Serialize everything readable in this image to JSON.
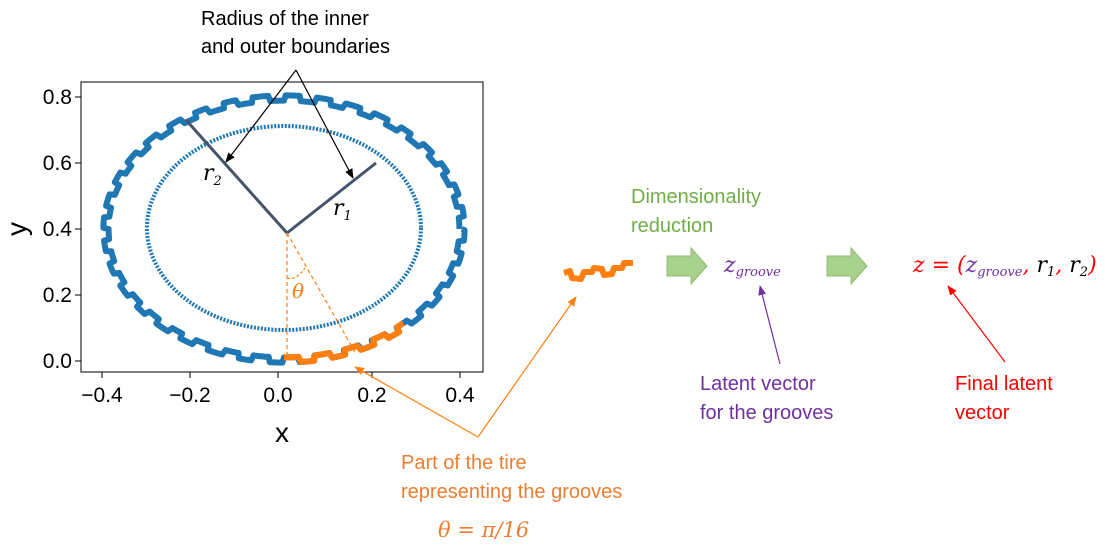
{
  "plot": {
    "x_ticks": [
      "−0.4",
      "−0.2",
      "0.0",
      "0.2",
      "0.4"
    ],
    "y_ticks": [
      "0.8",
      "0.6",
      "0.4",
      "0.2",
      "0.0"
    ],
    "x_label": "x",
    "y_label": "y"
  },
  "annotations": {
    "radius_note_line1": "Radius of the inner",
    "radius_note_line2": "and outer boundaries",
    "r2": "r",
    "r2_sub": "2",
    "r1": "r",
    "r1_sub": "1",
    "theta": "θ",
    "grooves_line1": "Part of the tire",
    "grooves_line2": "representing the grooves",
    "theta_eq": "θ = π/16"
  },
  "pipeline": {
    "dim_red_line1": "Dimensionality",
    "dim_red_line2": "reduction",
    "z_groove_main": "z",
    "z_groove_sub": "groove",
    "latent_line1": "Latent vector",
    "latent_line2": "for the grooves",
    "final_z": "z",
    "final_eq": " = (",
    "final_zg": "z",
    "final_zg_sub": "groove",
    "comma1": ", ",
    "final_r1": "r",
    "final_r1_sub": "1",
    "comma2": ", ",
    "final_r2": "r",
    "final_r2_sub": "2",
    "final_close": ")",
    "final_line1": "Final latent",
    "final_line2": "vector"
  },
  "colors": {
    "blue": "#1f77b4",
    "orange": "#ff7f0e",
    "green": "#70ad47",
    "purple": "#7030a0",
    "red": "#ff0000",
    "arrow_fill": "#a9d18e",
    "dark": "#44546a"
  }
}
